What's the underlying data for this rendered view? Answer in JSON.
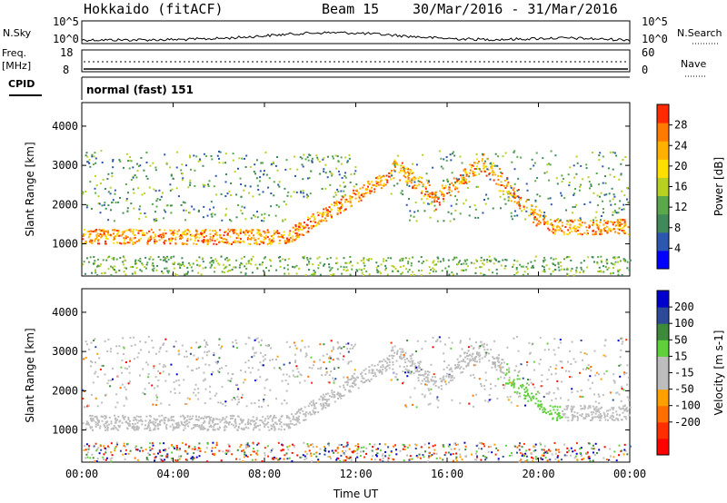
{
  "header": {
    "station": "Hokkaido (fitACF)",
    "beam": "Beam 15",
    "dates": "30/Mar/2016 - 31/Mar/2016"
  },
  "top_panels": {
    "nsky_label": "N.Sky",
    "nsearch_label": "N.Search",
    "freq_label_1": "Freq.",
    "freq_label_2": "[MHz]",
    "nave_label": "Nave",
    "cpid_label": "CPID",
    "cpid_value": "normal (fast) 151",
    "noise_ticks": [
      "10^5",
      "10^0"
    ],
    "freq_ticks": [
      "18",
      "8"
    ],
    "nave_ticks": [
      "60",
      "0"
    ]
  },
  "colors": {
    "power_scale": [
      "#0000ff",
      "#2c57b0",
      "#3f8a58",
      "#5aa84a",
      "#b8d022",
      "#ffdf00",
      "#ffb000",
      "#ff7a00",
      "#ff2a00"
    ],
    "velocity_scale": [
      "#0000cc",
      "#2c4a98",
      "#3d8a3a",
      "#5fcf3a",
      "#bdbdbd",
      "#bdbdbd",
      "#ffa000",
      "#ff7000",
      "#ff3000",
      "#ff0000"
    ]
  },
  "chart_data": [
    {
      "type": "heatmap",
      "title": "Power",
      "xlabel": "Time UT",
      "ylabel": "Slant Range [km]",
      "x_ticks": [
        "00:00",
        "04:00",
        "08:00",
        "12:00",
        "16:00",
        "20:00",
        "00:00"
      ],
      "y_ticks": [
        1000,
        2000,
        3000,
        4000
      ],
      "ylim": [
        180,
        4600
      ],
      "colorbar_label": "Power [dB]",
      "colorbar_ticks": [
        4,
        8,
        12,
        16,
        20,
        24,
        28
      ],
      "colorbar_range": [
        0,
        32
      ]
    },
    {
      "type": "heatmap",
      "title": "Velocity",
      "xlabel": "Time UT",
      "ylabel": "Slant Range [km]",
      "x_ticks": [
        "00:00",
        "04:00",
        "08:00",
        "12:00",
        "16:00",
        "20:00",
        "00:00"
      ],
      "y_ticks": [
        1000,
        2000,
        3000,
        4000
      ],
      "ylim": [
        180,
        4600
      ],
      "colorbar_label": "Velocity [m s-1]",
      "colorbar_ticks": [
        "200",
        "100",
        "50",
        "15",
        "-15",
        "-50",
        "-100",
        "-200"
      ]
    }
  ]
}
